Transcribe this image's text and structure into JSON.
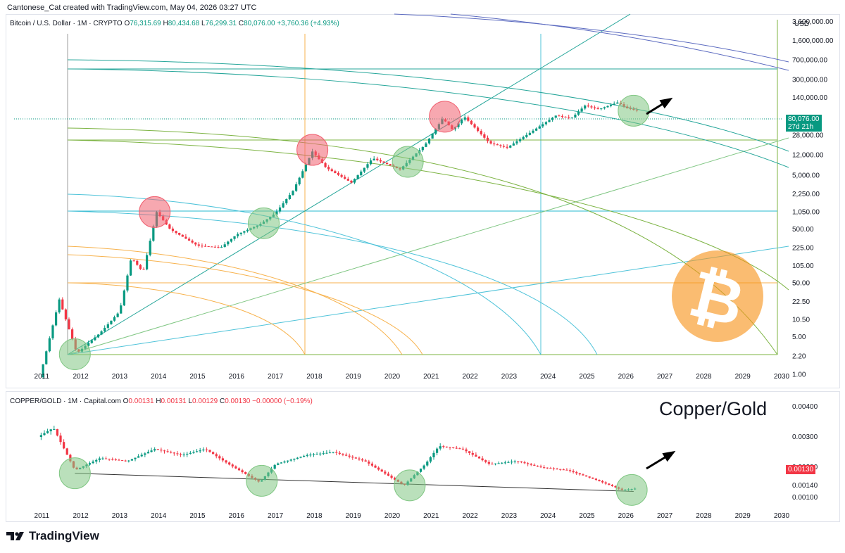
{
  "header": {
    "credit": "Cantonese_Cat created with TradingView.com, May 04, 2026 03:27 UTC"
  },
  "main_pane": {
    "symbol": "Bitcoin / U.S. Dollar · 1M · CRYPTO",
    "ohlc": {
      "open": "76,315.69",
      "high": "80,434.68",
      "low": "76,299.31",
      "close": "80,076.00",
      "change": "+3,760.36 (+4.93%)"
    },
    "currency": "USD",
    "price_tag": {
      "price": "80,076.00",
      "countdown": "27d 21h",
      "color": "#089981"
    }
  },
  "sub_pane": {
    "symbol": "COPPER/GOLD · 1M · Capital.com",
    "ohlc": {
      "open": "0.00131",
      "high": "0.00131",
      "low": "0.00129",
      "close": "0.00130",
      "change": "−0.00000 (−0.19%)"
    },
    "annotation": "Copper/Gold",
    "price_tag": {
      "price": "0.00130",
      "color": "#f23645"
    }
  },
  "branding": {
    "logo_text": "TradingView"
  },
  "colors": {
    "up": "#089981",
    "down": "#f23645",
    "orange": "#f7931a",
    "green_marker": "#81c784",
    "red_marker": "#f06070"
  },
  "chart_data": [
    {
      "type": "candlestick",
      "title": "Bitcoin / U.S. Dollar",
      "y_scale": "log",
      "x_ticks": [
        "2011",
        "2012",
        "2013",
        "2014",
        "2015",
        "2016",
        "2017",
        "2018",
        "2019",
        "2020",
        "2021",
        "2022",
        "2023",
        "2024",
        "2025",
        "2026",
        "2027",
        "2028",
        "2029",
        "2030"
      ],
      "y_ticks": [
        "3,600,000.00",
        "1,600,000.00",
        "700,000.00",
        "300,000.00",
        "140,000.00",
        "28,000.00",
        "12,000.00",
        "5,000.00",
        "2,250.00",
        "1,050.00",
        "500.00",
        "225.00",
        "105.00",
        "50.00",
        "22.50",
        "10.50",
        "5.00",
        "2.20",
        "1.00"
      ],
      "ylim": [
        0.8,
        5000000
      ],
      "xlim": [
        2010.85,
        2030.0
      ],
      "price_path": [
        [
          2010.95,
          0.9
        ],
        [
          2011.45,
          25
        ],
        [
          2011.9,
          2.5
        ],
        [
          2012.5,
          6
        ],
        [
          2013.0,
          15
        ],
        [
          2013.3,
          150
        ],
        [
          2013.6,
          80
        ],
        [
          2013.95,
          1050
        ],
        [
          2014.3,
          500
        ],
        [
          2015.0,
          250
        ],
        [
          2015.6,
          230
        ],
        [
          2016.0,
          400
        ],
        [
          2016.6,
          620
        ],
        [
          2017.0,
          1000
        ],
        [
          2017.45,
          2600
        ],
        [
          2017.95,
          14000
        ],
        [
          2018.3,
          7000
        ],
        [
          2018.95,
          3700
        ],
        [
          2019.5,
          10500
        ],
        [
          2020.2,
          6500
        ],
        [
          2020.85,
          19000
        ],
        [
          2021.3,
          58000
        ],
        [
          2021.55,
          35000
        ],
        [
          2021.85,
          62000
        ],
        [
          2022.5,
          20000
        ],
        [
          2022.95,
          16500
        ],
        [
          2023.5,
          30000
        ],
        [
          2024.2,
          65000
        ],
        [
          2024.6,
          58000
        ],
        [
          2024.95,
          100000
        ],
        [
          2025.3,
          85000
        ],
        [
          2025.8,
          115000
        ],
        [
          2026.0,
          90000
        ],
        [
          2026.3,
          80076
        ]
      ],
      "markers": [
        {
          "kind": "cycle-top",
          "x": 2013.9,
          "y": 1050
        },
        {
          "kind": "cycle-top",
          "x": 2017.95,
          "y": 15000
        },
        {
          "kind": "cycle-top",
          "x": 2021.35,
          "y": 62000
        },
        {
          "kind": "cycle-bottom",
          "x": 2011.85,
          "y": 2.4
        },
        {
          "kind": "cycle-bottom",
          "x": 2016.7,
          "y": 650
        },
        {
          "kind": "cycle-bottom",
          "x": 2020.4,
          "y": 9000
        },
        {
          "kind": "cycle-bottom",
          "x": 2026.2,
          "y": 80000
        }
      ]
    },
    {
      "type": "candlestick",
      "title": "COPPER/GOLD",
      "y_scale": "linear",
      "x_ticks": [
        "2011",
        "2012",
        "2013",
        "2014",
        "2015",
        "2016",
        "2017",
        "2018",
        "2019",
        "2020",
        "2021",
        "2022",
        "2023",
        "2024",
        "2025",
        "2026",
        "2027",
        "2028",
        "2029",
        "2030"
      ],
      "y_ticks": [
        "0.00400",
        "0.00300",
        "0.00200",
        "0.00140",
        "0.00100"
      ],
      "ylim": [
        0.0007,
        0.004
      ],
      "xlim": [
        2010.85,
        2030.0
      ],
      "price_path": [
        [
          2010.9,
          0.003
        ],
        [
          2011.3,
          0.0033
        ],
        [
          2011.85,
          0.0019
        ],
        [
          2012.5,
          0.0023
        ],
        [
          2013.2,
          0.0022
        ],
        [
          2013.9,
          0.0026
        ],
        [
          2014.6,
          0.0024
        ],
        [
          2015.2,
          0.0026
        ],
        [
          2015.8,
          0.0021
        ],
        [
          2016.6,
          0.0015
        ],
        [
          2017.0,
          0.0021
        ],
        [
          2017.8,
          0.0024
        ],
        [
          2018.5,
          0.0025
        ],
        [
          2019.3,
          0.0022
        ],
        [
          2020.3,
          0.0014
        ],
        [
          2020.85,
          0.0021
        ],
        [
          2021.2,
          0.0027
        ],
        [
          2021.8,
          0.0026
        ],
        [
          2022.5,
          0.0021
        ],
        [
          2023.2,
          0.0022
        ],
        [
          2023.8,
          0.002
        ],
        [
          2024.5,
          0.0019
        ],
        [
          2025.2,
          0.0016
        ],
        [
          2025.9,
          0.00125
        ],
        [
          2026.3,
          0.0013
        ]
      ],
      "trendline": [
        [
          2011.85,
          0.0018
        ],
        [
          2026.2,
          0.0012
        ]
      ],
      "markers": [
        {
          "kind": "cycle-bottom",
          "x": 2011.85,
          "y": 0.0018
        },
        {
          "kind": "cycle-bottom",
          "x": 2016.65,
          "y": 0.00155
        },
        {
          "kind": "cycle-bottom",
          "x": 2020.45,
          "y": 0.0014
        },
        {
          "kind": "cycle-bottom",
          "x": 2026.15,
          "y": 0.00125
        }
      ]
    }
  ]
}
